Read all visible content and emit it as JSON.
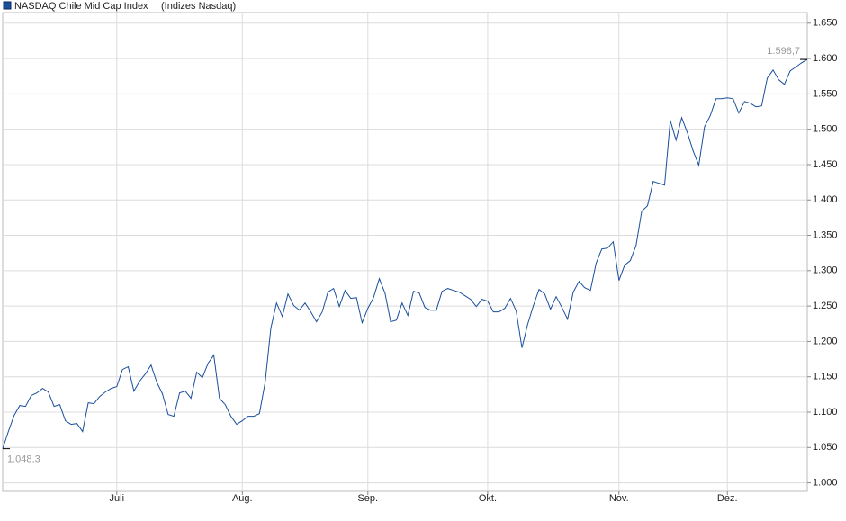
{
  "chart_data": {
    "type": "line",
    "title": "NASDAQ Chile Mid Cap Index",
    "subtitle": "(Indizes Nasdaq)",
    "series": [
      {
        "name": "NASDAQ Chile Mid Cap Index",
        "color": "#1a4f9c",
        "values": [
          1048.3,
          1072.5,
          1095.4,
          1109.4,
          1108.1,
          1123.4,
          1127.2,
          1133.6,
          1128.5,
          1108.1,
          1110.7,
          1087.8,
          1082.7,
          1084,
          1072.5,
          1113.2,
          1111.9,
          1122.1,
          1128.5,
          1133.6,
          1136.1,
          1160.3,
          1164.1,
          1129.7,
          1143.7,
          1153.9,
          1166.6,
          1142.5,
          1125.9,
          1096.7,
          1094.1,
          1127.2,
          1129.7,
          1119.6,
          1156.5,
          1148.8,
          1169.2,
          1180.6,
          1119.6,
          1110.7,
          1094.1,
          1082.7,
          1087.8,
          1094.1,
          1094.1,
          1097.9,
          1142.5,
          1218.8,
          1254.4,
          1235.3,
          1267.1,
          1250.6,
          1244.2,
          1254.4,
          1241.7,
          1227.7,
          1241.7,
          1269.7,
          1274.8,
          1249.3,
          1272.2,
          1260.8,
          1262,
          1226.4,
          1246.8,
          1262,
          1288.7,
          1268.4,
          1227.7,
          1230.2,
          1254.4,
          1236.6,
          1270.9,
          1268.4,
          1248,
          1244.2,
          1244.2,
          1270.9,
          1274.8,
          1272.2,
          1269.7,
          1264.6,
          1259.5,
          1249.3,
          1259.5,
          1256.9,
          1241.7,
          1241.7,
          1246.8,
          1260.8,
          1243,
          1190.8,
          1223.9,
          1250.6,
          1273.5,
          1267.1,
          1245.5,
          1263.3,
          1248,
          1231.5,
          1269.7,
          1284.9,
          1276,
          1272.2,
          1310.4,
          1330.7,
          1332,
          1340.9,
          1286.2,
          1307.8,
          1314.2,
          1335.8,
          1384.1,
          1391.8,
          1426.1,
          1423.6,
          1421,
          1512.6,
          1484.6,
          1516.4,
          1494.8,
          1469.4,
          1449,
          1503.7,
          1519,
          1543.1,
          1543.1,
          1544.4,
          1543.1,
          1522.8,
          1539.3,
          1536.8,
          1531.7,
          1533,
          1572.4,
          1583.8,
          1569.9,
          1563.5,
          1582.6,
          1588,
          1594,
          1598.7
        ]
      }
    ],
    "annotations": [
      {
        "text": "1.048,3",
        "value": 1048.3
      },
      {
        "text": "1.598,7",
        "value": 1598.7
      }
    ],
    "xlim": [
      0,
      141
    ],
    "xticks": [
      {
        "value": 20,
        "label": "Juli"
      },
      {
        "value": 42,
        "label": "Aug."
      },
      {
        "value": 64,
        "label": "Sep."
      },
      {
        "value": 85,
        "label": "Okt."
      },
      {
        "value": 108,
        "label": "Nov."
      },
      {
        "value": 127,
        "label": "Dez."
      }
    ],
    "ylim": [
      988,
      1665
    ],
    "yticks": [
      {
        "value": 1000,
        "label": "1.000"
      },
      {
        "value": 1050,
        "label": "1.050"
      },
      {
        "value": 1100,
        "label": "1.100"
      },
      {
        "value": 1150,
        "label": "1.150"
      },
      {
        "value": 1200,
        "label": "1.200"
      },
      {
        "value": 1250,
        "label": "1.250"
      },
      {
        "value": 1300,
        "label": "1.300"
      },
      {
        "value": 1350,
        "label": "1.350"
      },
      {
        "value": 1400,
        "label": "1.400"
      },
      {
        "value": 1450,
        "label": "1.450"
      },
      {
        "value": 1500,
        "label": "1.500"
      },
      {
        "value": 1550,
        "label": "1.550"
      },
      {
        "value": 1600,
        "label": "1.600"
      },
      {
        "value": 1650,
        "label": "1.650"
      }
    ],
    "grid": true
  }
}
